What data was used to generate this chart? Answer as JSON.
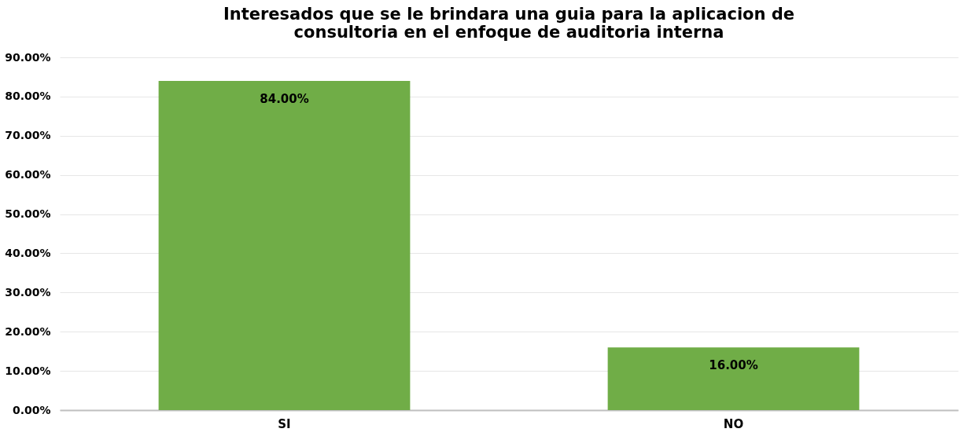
{
  "chart_data": {
    "type": "bar",
    "title": "Interesados que se le brindara una guia para la aplicacion de consultoria en el enfoque de auditoria interna",
    "categories": [
      "SI",
      "NO"
    ],
    "values": [
      84,
      16
    ],
    "value_labels": [
      "84.00%",
      "16.00%"
    ],
    "color": "#70ad47",
    "ylim": [
      0,
      90
    ],
    "yticks": [
      {
        "value": 0,
        "label": "0.00%"
      },
      {
        "value": 10,
        "label": "10.00%"
      },
      {
        "value": 20,
        "label": "20.00%"
      },
      {
        "value": 30,
        "label": "30.00%"
      },
      {
        "value": 40,
        "label": "40.00%"
      },
      {
        "value": 50,
        "label": "50.00%"
      },
      {
        "value": 60,
        "label": "60.00%"
      },
      {
        "value": 70,
        "label": "70.00%"
      },
      {
        "value": 80,
        "label": "80.00%"
      },
      {
        "value": 90,
        "label": "90.00%"
      }
    ],
    "grid": "y"
  }
}
